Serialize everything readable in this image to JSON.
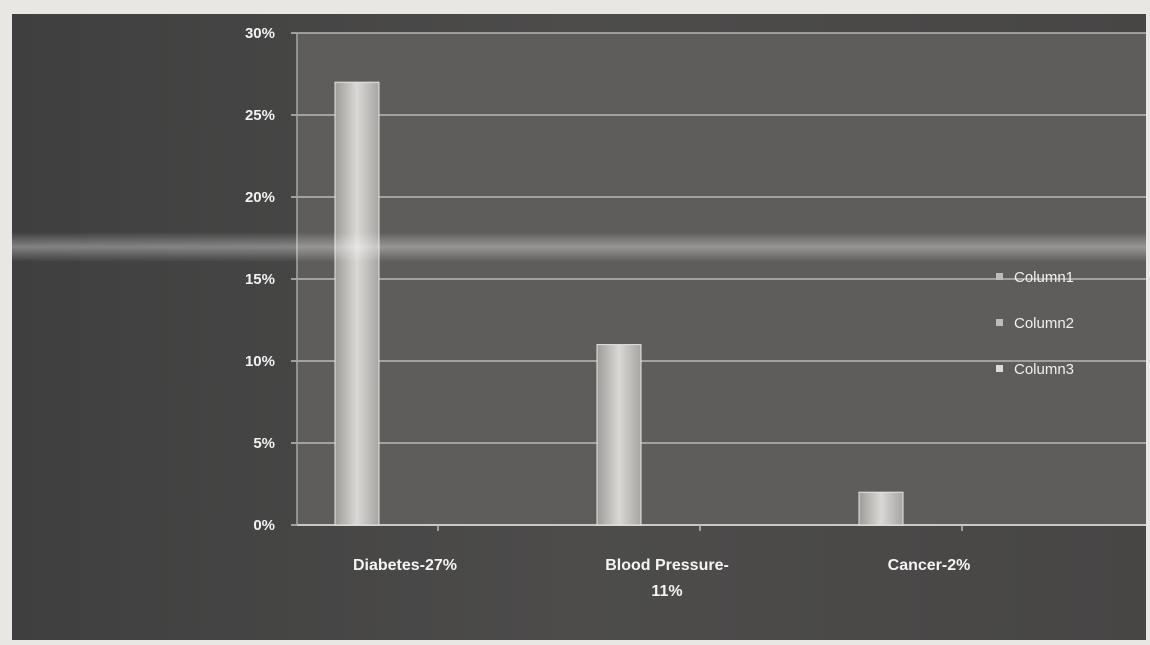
{
  "chart_data": {
    "type": "bar",
    "categories": [
      [
        "Diabetes-27%"
      ],
      [
        "Blood Pressure-",
        "11%"
      ],
      [
        "Cancer-2%"
      ]
    ],
    "series": [
      {
        "name": "Column1",
        "values": [
          27,
          11,
          2
        ]
      }
    ],
    "legend": [
      "Column1",
      "Column2",
      "Column3"
    ],
    "legend_position": "right",
    "y_ticks": [
      "0%",
      "5%",
      "10%",
      "15%",
      "20%",
      "25%",
      "30%"
    ],
    "ylim": [
      0,
      30
    ],
    "grid": true,
    "colors": {
      "background": "#4a4a4a",
      "plot_area": "#5d5c5a",
      "bar": "#cfcfcc",
      "gridline": "#b9b8b4"
    }
  }
}
